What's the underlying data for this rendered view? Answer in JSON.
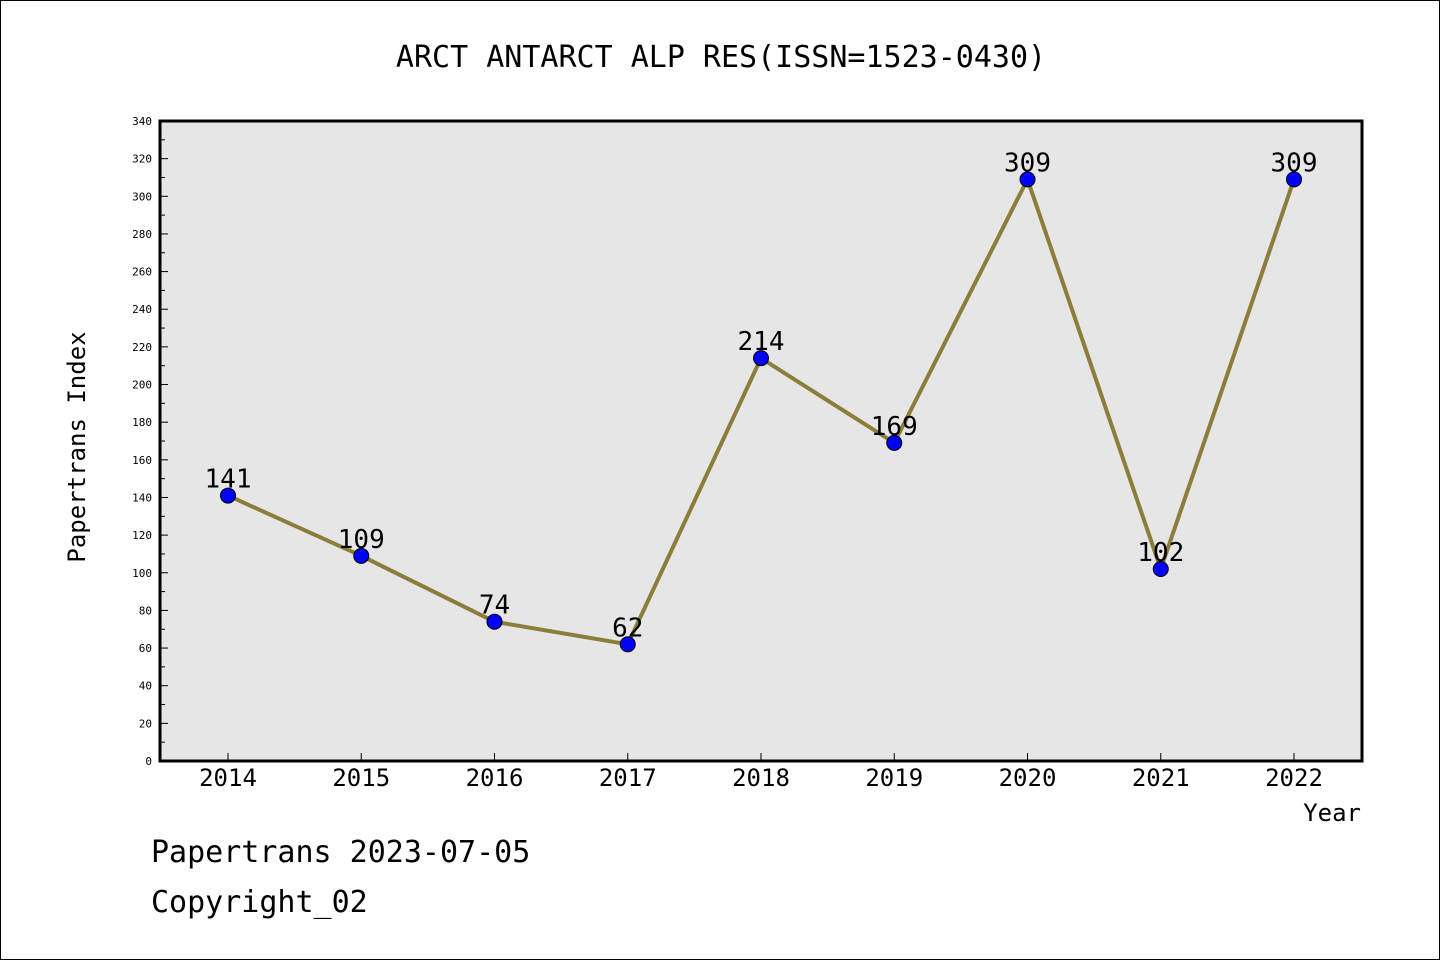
{
  "chart_data": {
    "type": "line",
    "title": "ARCT ANTARCT ALP RES(ISSN=1523-0430)",
    "xlabel": "Year",
    "ylabel": "Papertrans Index",
    "categories": [
      "2014",
      "2015",
      "2016",
      "2017",
      "2018",
      "2019",
      "2020",
      "2021",
      "2022"
    ],
    "series": [
      {
        "values": [
          141,
          109,
          74,
          62,
          214,
          169,
          309,
          102,
          309
        ]
      }
    ],
    "data_labels": [
      "141",
      "109",
      "74",
      "62",
      "214",
      "169",
      "309",
      "102",
      "309"
    ],
    "ylim": [
      0,
      340
    ],
    "y_ticks": [
      0,
      20,
      40,
      60,
      80,
      100,
      120,
      140,
      160,
      180,
      200,
      220,
      240,
      260,
      280,
      300,
      320,
      340
    ],
    "grid": false,
    "legend": "none",
    "colors": {
      "plot_background": "#e6e6e6",
      "line": "#8b7d3a",
      "marker": "#0000ff",
      "axes": "#000000"
    }
  },
  "footer": {
    "line1": "Papertrans 2023-07-05",
    "line2": "Copyright_02"
  }
}
